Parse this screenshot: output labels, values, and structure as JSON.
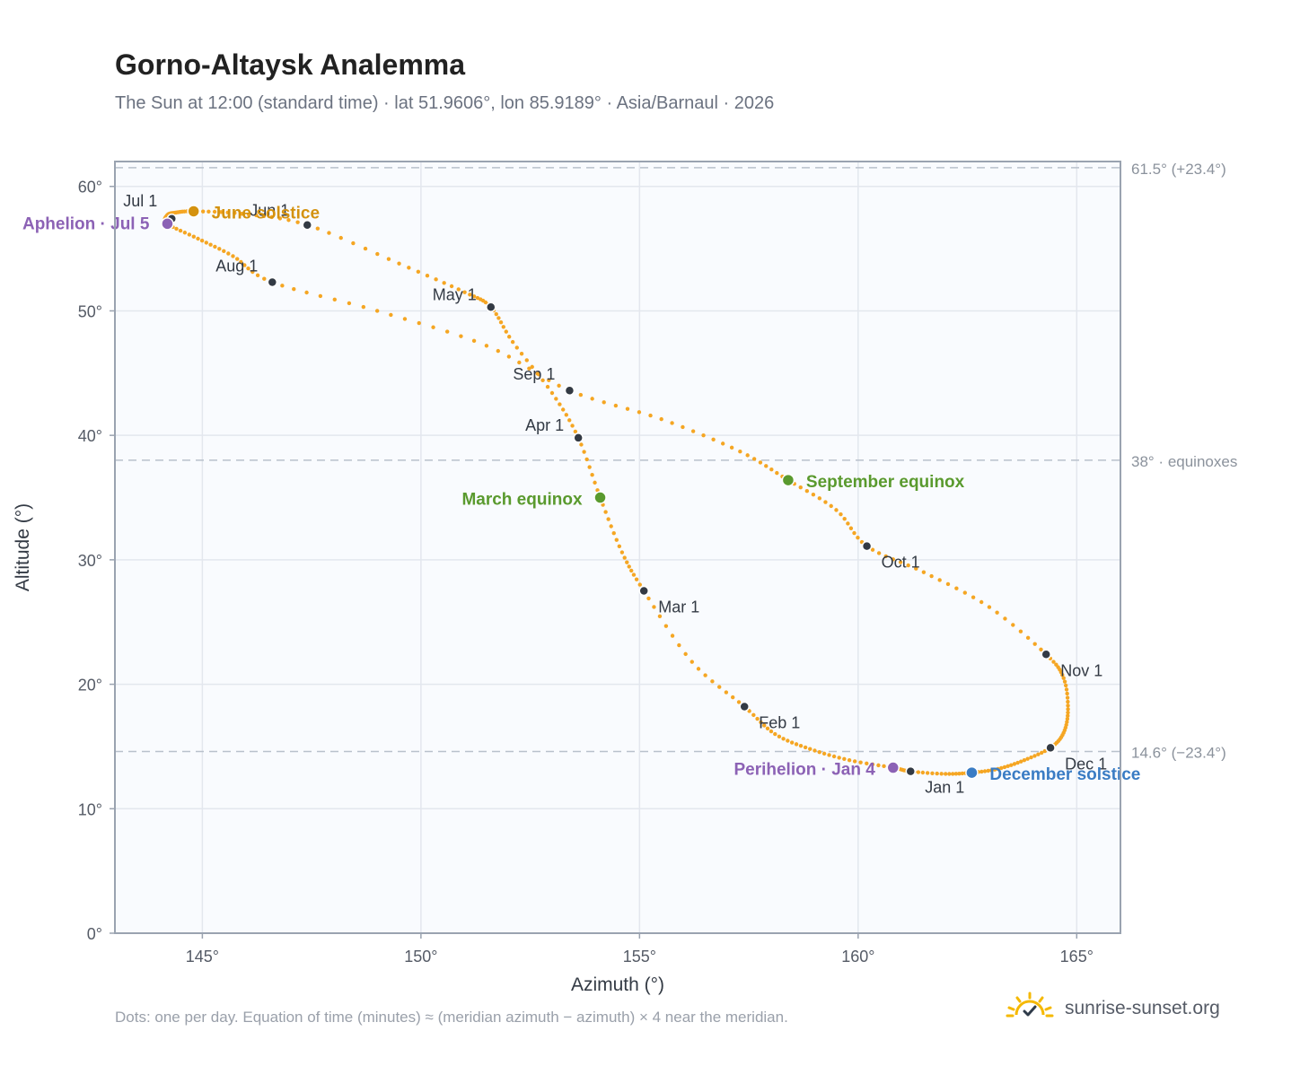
{
  "header": {
    "title": "Gorno-Altaysk Analemma",
    "subtitle": "The Sun at 12:00 (standard time) · lat 51.9606°, lon 85.9189° · Asia/Barnaul · 2026"
  },
  "footer": {
    "note": "Dots: one per day. Equation of time (minutes) ≈ (meridian azimuth − azimuth) × 4 near the meridian.",
    "brand": "sunrise-sunset.org",
    "brand_icon": "sunrise-logo-icon"
  },
  "colors": {
    "curve": "#f5a623",
    "month_marker": "#333a44",
    "june_solstice": "#d4920f",
    "december_solstice": "#3a7cc4",
    "equinox": "#5a9a2e",
    "apsis": "#8c62b5",
    "plot_bg": "#f9fbfe",
    "grid": "#e3e7ee",
    "ref_line": "#b9c1cc"
  },
  "chart_data": {
    "type": "scatter",
    "xlabel": "Azimuth (°)",
    "ylabel": "Altitude (°)",
    "xlim": [
      143,
      166
    ],
    "ylim": [
      0,
      62
    ],
    "x_ticks": [
      145,
      150,
      155,
      160,
      165
    ],
    "x_tick_labels": [
      "145°",
      "150°",
      "155°",
      "160°",
      "165°"
    ],
    "y_ticks": [
      0,
      10,
      20,
      30,
      40,
      50,
      60
    ],
    "y_tick_labels": [
      "0°",
      "10°",
      "20°",
      "30°",
      "40°",
      "50°",
      "60°"
    ],
    "grid": true,
    "reference_lines": [
      {
        "y": 61.5,
        "label": "61.5° (+23.4°)"
      },
      {
        "y": 38,
        "label": "38° · equinoxes"
      },
      {
        "y": 14.6,
        "label": "14.6° (−23.4°)"
      }
    ],
    "series": [
      {
        "name": "",
        "points_per_year": 365,
        "path_points": [
          [
            161.2,
            13.0
          ],
          [
            160.8,
            13.3
          ],
          [
            159.8,
            13.9
          ],
          [
            158.9,
            14.8
          ],
          [
            158.1,
            16.0
          ],
          [
            157.4,
            18.2
          ],
          [
            156.2,
            21.8
          ],
          [
            155.1,
            27.5
          ],
          [
            154.6,
            30.6
          ],
          [
            154.1,
            35.0
          ],
          [
            153.6,
            39.8
          ],
          [
            153.0,
            43.4
          ],
          [
            152.1,
            47.5
          ],
          [
            151.6,
            50.3
          ],
          [
            151.0,
            51.5
          ],
          [
            149.5,
            53.8
          ],
          [
            147.4,
            56.9
          ],
          [
            145.9,
            57.8
          ],
          [
            144.8,
            58.0
          ],
          [
            144.4,
            57.9
          ],
          [
            144.2,
            57.7
          ],
          [
            144.2,
            57.0
          ],
          [
            144.9,
            55.8
          ],
          [
            145.7,
            54.4
          ],
          [
            146.6,
            52.3
          ],
          [
            149.0,
            50.0
          ],
          [
            151.5,
            47.2
          ],
          [
            153.4,
            43.6
          ],
          [
            155.5,
            41.3
          ],
          [
            157.3,
            38.7
          ],
          [
            158.4,
            36.4
          ],
          [
            159.5,
            34.0
          ],
          [
            160.2,
            31.1
          ],
          [
            161.5,
            29.0
          ],
          [
            163.0,
            26.2
          ],
          [
            164.3,
            22.4
          ],
          [
            164.7,
            20.5
          ],
          [
            164.8,
            18.0
          ],
          [
            164.7,
            16.1
          ],
          [
            164.4,
            14.9
          ],
          [
            163.8,
            13.9
          ],
          [
            163.2,
            13.2
          ],
          [
            162.6,
            12.9
          ],
          [
            162.0,
            12.8
          ],
          [
            161.2,
            13.0
          ]
        ]
      }
    ],
    "month_markers": [
      {
        "label": "Jan 1",
        "x": 161.2,
        "y": 13.0
      },
      {
        "label": "Feb 1",
        "x": 157.4,
        "y": 18.2
      },
      {
        "label": "Mar 1",
        "x": 155.1,
        "y": 27.5
      },
      {
        "label": "Apr 1",
        "x": 153.6,
        "y": 39.8
      },
      {
        "label": "May 1",
        "x": 151.6,
        "y": 50.3
      },
      {
        "label": "Jun 1",
        "x": 147.4,
        "y": 56.9
      },
      {
        "label": "Jul 1",
        "x": 144.3,
        "y": 57.4
      },
      {
        "label": "Aug 1",
        "x": 146.6,
        "y": 52.3
      },
      {
        "label": "Sep 1",
        "x": 153.4,
        "y": 43.6
      },
      {
        "label": "Oct 1",
        "x": 160.2,
        "y": 31.1
      },
      {
        "label": "Nov 1",
        "x": 164.3,
        "y": 22.4
      },
      {
        "label": "Dec 1",
        "x": 164.4,
        "y": 14.9
      }
    ],
    "special_points": [
      {
        "label": "June solstice",
        "x": 144.8,
        "y": 58.0,
        "kind": "june_solstice"
      },
      {
        "label": "December solstice",
        "x": 162.6,
        "y": 12.9,
        "kind": "december_solstice"
      },
      {
        "label": "March equinox",
        "x": 154.1,
        "y": 35.0,
        "kind": "equinox"
      },
      {
        "label": "September equinox",
        "x": 158.4,
        "y": 36.4,
        "kind": "equinox"
      },
      {
        "label": "Aphelion · Jul 5",
        "x": 144.2,
        "y": 57.0,
        "kind": "apsis"
      },
      {
        "label": "Perihelion · Jan 4",
        "x": 160.8,
        "y": 13.3,
        "kind": "apsis"
      }
    ]
  }
}
